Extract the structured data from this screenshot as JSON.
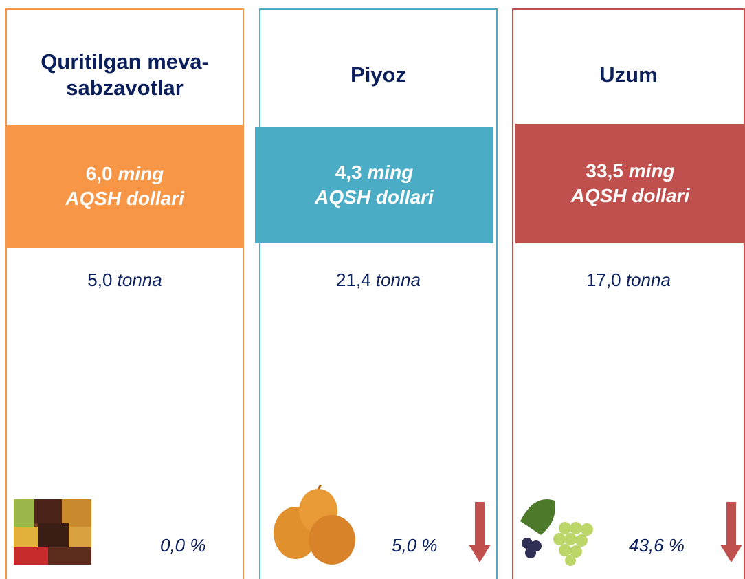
{
  "cards": [
    {
      "title": "Quritilgan meva-sabzavotlar",
      "value": "6,0",
      "value_unit": "ming",
      "value_currency": "AQSH dollari",
      "volume": "5,0",
      "volume_unit": "tonna",
      "change": "0,0 %",
      "color": "#f79646"
    },
    {
      "title": "Piyoz",
      "value": "4,3",
      "value_unit": "ming",
      "value_currency": "AQSH dollari",
      "volume": "21,4",
      "volume_unit": "tonna",
      "change": "5,0 %",
      "color": "#4bacc6",
      "arrow": "down"
    },
    {
      "title": "Uzum",
      "value": "33,5",
      "value_unit": "ming",
      "value_currency": "AQSH dollari",
      "volume": "17,0",
      "volume_unit": "tonna",
      "change": "43,6 %",
      "color": "#c0504d",
      "arrow": "down"
    }
  ]
}
